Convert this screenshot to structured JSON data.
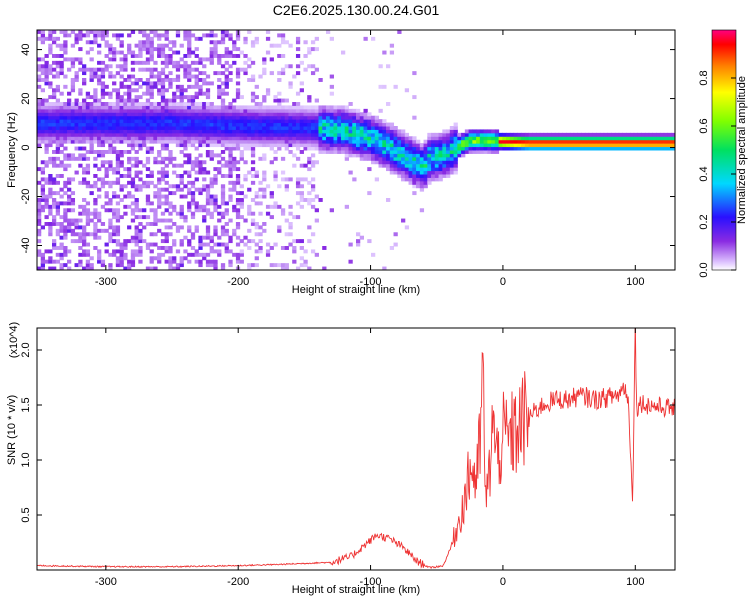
{
  "title": "C2E6.2025.130.00.24.G01",
  "chart_data": [
    {
      "type": "heatmap",
      "xlabel": "Height of straight line (km)",
      "ylabel": "Frequency (Hz)",
      "xlim": [
        -352,
        130
      ],
      "ylim": [
        -50,
        48
      ],
      "xticks": [
        "-300",
        "-200",
        "-100",
        "0",
        "100"
      ],
      "yticks": [
        "-40",
        "-20",
        "0",
        "20",
        "40"
      ],
      "colorbar": {
        "label": "Normalized spectral amplitude",
        "range": [
          0.0,
          1.0
        ],
        "ticks": [
          "0.0",
          "0.2",
          "0.4",
          "0.6",
          "0.8"
        ],
        "colormap": "rainbow"
      },
      "ridge": {
        "x": [
          -300,
          -250,
          -200,
          -160,
          -140,
          -120,
          -100,
          -85,
          -70,
          -60,
          -55,
          -45,
          -35,
          -25,
          -10,
          0,
          20,
          50,
          80,
          100,
          130
        ],
        "y": [
          10,
          10,
          9,
          8.5,
          8,
          7,
          4,
          0,
          -5,
          -8,
          -4,
          -3,
          0,
          3,
          3,
          2.5,
          2,
          2,
          2,
          2,
          2
        ],
        "peak_x": [
          0,
          130
        ],
        "peak_amplitude": 1.0
      },
      "noise_region": {
        "x_from": -352,
        "x_to": -140,
        "description_level": "scattered low-amplitude speckle"
      }
    },
    {
      "type": "line",
      "xlabel": "Height of straight line (km)",
      "ylabel": "SNR (10 * v/v)",
      "yscale_label": "(x10^4)",
      "xlim": [
        -352,
        130
      ],
      "ylim": [
        0,
        2.2
      ],
      "xticks": [
        "-300",
        "-200",
        "-100",
        "0",
        "100"
      ],
      "yticks": [
        "0.5",
        "1.0",
        "1.5",
        "2.0"
      ],
      "color": "#ee3333",
      "series": [
        {
          "x": [
            -350,
            -300,
            -250,
            -200,
            -170,
            -150,
            -130,
            -115,
            -105,
            -95,
            -85,
            -75,
            -65,
            -55,
            -45,
            -38,
            -32,
            -28,
            -24,
            -20,
            -17,
            -15,
            -13,
            -10,
            -8,
            -5,
            0,
            5,
            10,
            15,
            20,
            25,
            30,
            40,
            50,
            57,
            60,
            70,
            80,
            88,
            92,
            95,
            98,
            99,
            100,
            101,
            102,
            105,
            110,
            120,
            130
          ],
          "y": [
            0.04,
            0.03,
            0.03,
            0.04,
            0.05,
            0.06,
            0.07,
            0.12,
            0.22,
            0.32,
            0.28,
            0.2,
            0.08,
            0.02,
            0.04,
            0.25,
            0.5,
            0.7,
            0.95,
            0.8,
            1.2,
            1.82,
            0.6,
            0.9,
            1.4,
            1.0,
            1.2,
            1.2,
            1.25,
            1.35,
            1.4,
            1.45,
            1.5,
            1.55,
            1.55,
            1.58,
            1.58,
            1.55,
            1.57,
            1.6,
            1.68,
            1.5,
            0.6,
            1.5,
            2.2,
            1.45,
            1.5,
            1.52,
            1.5,
            1.48,
            1.47
          ]
        }
      ]
    }
  ]
}
